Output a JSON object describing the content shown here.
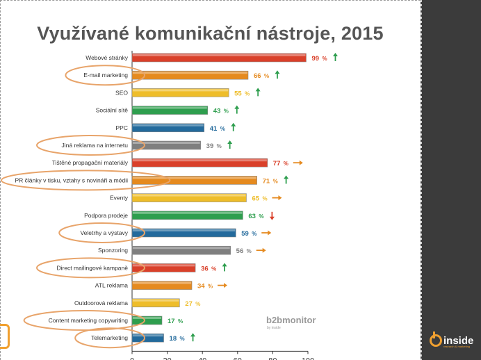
{
  "page_title": "Využívané komunikační nástroje, 2015",
  "chart_data": {
    "type": "bar",
    "orientation": "horizontal",
    "title": "Využívané komunikační nástroje, 2015",
    "xlim": [
      0,
      100
    ],
    "xticks": [
      0,
      20,
      40,
      60,
      80,
      100
    ],
    "grid": false,
    "value_suffix": "%",
    "items": [
      {
        "label": "Webové stránky",
        "value": 99,
        "trend": "up",
        "color": "#d9402a",
        "highlighted": false
      },
      {
        "label": "E-mail marketing",
        "value": 66,
        "trend": "up",
        "color": "#e58a1f",
        "highlighted": true
      },
      {
        "label": "SEO",
        "value": 55,
        "trend": "up",
        "color": "#eebd2a",
        "highlighted": false
      },
      {
        "label": "Sociální sítě",
        "value": 43,
        "trend": "up",
        "color": "#2e9e4e",
        "highlighted": false
      },
      {
        "label": "PPC",
        "value": 41,
        "trend": "up",
        "color": "#236a9c",
        "highlighted": false
      },
      {
        "label": "Jiná reklama na internetu",
        "value": 39,
        "trend": "up",
        "color": "#7f7f7f",
        "highlighted": true
      },
      {
        "label": "Tištěné propagační materiály",
        "value": 77,
        "trend": "flat",
        "color": "#d9402a",
        "highlighted": false
      },
      {
        "label": "PR články v tisku, vztahy s novináři a médii",
        "value": 71,
        "trend": "up",
        "color": "#e58a1f",
        "highlighted": true
      },
      {
        "label": "Eventy",
        "value": 65,
        "trend": "flat",
        "color": "#eebd2a",
        "highlighted": false
      },
      {
        "label": "Podpora prodeje",
        "value": 63,
        "trend": "down",
        "color": "#2e9e4e",
        "highlighted": false
      },
      {
        "label": "Veletrhy a výstavy",
        "value": 59,
        "trend": "flat",
        "color": "#236a9c",
        "highlighted": true
      },
      {
        "label": "Sponzoring",
        "value": 56,
        "trend": "flat",
        "color": "#7f7f7f",
        "highlighted": false
      },
      {
        "label": "Direct mailingové kampaně",
        "value": 36,
        "trend": "up",
        "color": "#d9402a",
        "highlighted": true
      },
      {
        "label": "ATL reklama",
        "value": 34,
        "trend": "flat",
        "color": "#e58a1f",
        "highlighted": false
      },
      {
        "label": "Outdoorová reklama",
        "value": 27,
        "trend": "none",
        "color": "#eebd2a",
        "highlighted": false
      },
      {
        "label": "Content marketing copywriting",
        "value": 17,
        "trend": "none",
        "color": "#2e9e4e",
        "highlighted": true
      },
      {
        "label": "Telemarketing",
        "value": 18,
        "trend": "up",
        "color": "#236a9c",
        "highlighted": true
      }
    ]
  },
  "watermark": {
    "brand": "b2bmonitor",
    "byline": "by inside"
  },
  "logo": {
    "text": "inside",
    "tagline": "research & marketing"
  },
  "colors": {
    "arrow_up": "#2e9e4e",
    "arrow_flat": "#e58a1f",
    "arrow_down": "#d9402a",
    "highlight_ring": "#e8a46a"
  }
}
